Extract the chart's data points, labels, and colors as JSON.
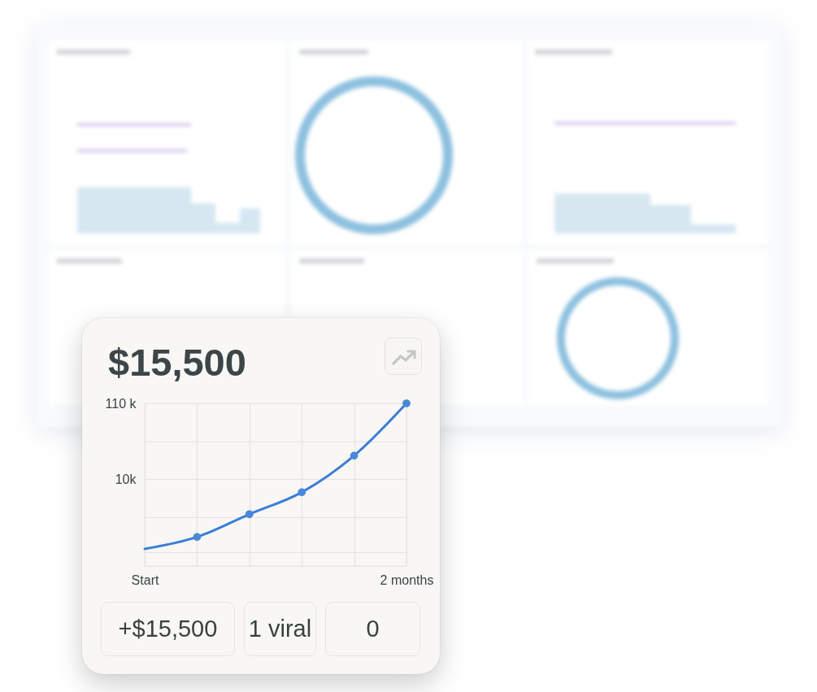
{
  "chart_data": {
    "type": "area",
    "title": "$15,500",
    "categories": [
      "Start",
      null,
      null,
      null,
      null,
      "2 months"
    ],
    "series": [
      {
        "color": "#3b7dd8",
        "values": [
          1100,
          1600,
          3300,
          6600,
          21000,
          110000
        ]
      },
      {
        "type": "scatter",
        "color": "#4a88d9",
        "marker": "circle",
        "values": [
          null,
          1600,
          3300,
          6600,
          21000,
          110000
        ]
      }
    ],
    "ylim": [
      640,
      110000
    ],
    "yticks": [
      {
        "value": 1000,
        "label": null
      },
      {
        "value": 3000,
        "label": null
      },
      {
        "value": 10000,
        "label": "10k"
      },
      {
        "value": 33000,
        "label": null
      },
      {
        "value": 110000,
        "label": "110 k"
      }
    ],
    "log": true,
    "grid": true,
    "annotations": [
      "+$15,500",
      "1 viral",
      "0"
    ]
  }
}
